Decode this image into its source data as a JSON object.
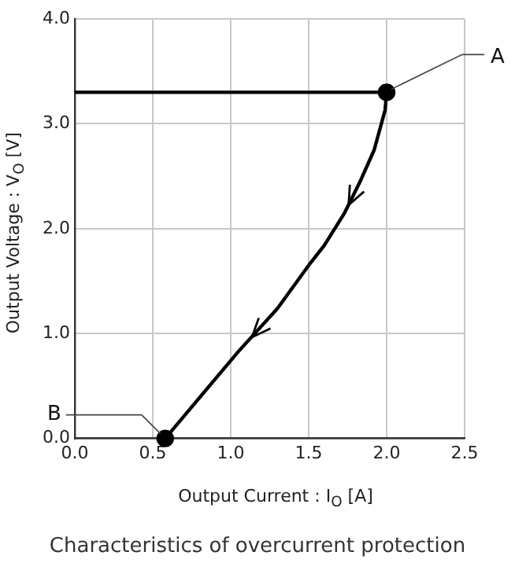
{
  "chart_data": {
    "type": "line",
    "xlabel": "Output Current : I$_{O}$ [A]",
    "ylabel": "Output Voltage : V$_{O}$ [V]",
    "xlim": [
      0,
      2.5
    ],
    "xticks": [
      {
        "value": 0,
        "label": "0.0"
      },
      {
        "value": 0.5,
        "label": "0.5"
      },
      {
        "value": 1,
        "label": "1.0"
      },
      {
        "value": 1.5,
        "label": "1.5"
      },
      {
        "value": 2,
        "label": "2.0"
      },
      {
        "value": 2.5,
        "label": "2.5"
      }
    ],
    "ylim": [
      0,
      4
    ],
    "yticks": [
      {
        "value": 0,
        "label": "0.0"
      },
      {
        "value": 1,
        "label": "1.0"
      },
      {
        "value": 2,
        "label": "2.0"
      },
      {
        "value": 3,
        "label": "3.0"
      },
      {
        "value": 4,
        "label": "4.0"
      }
    ],
    "grid": true,
    "legend": false,
    "line_style": "solid",
    "series": [
      {
        "type": "line",
        "color": "#000000",
        "marker": "none",
        "x": [
          0,
          2.0,
          1.99,
          1.92,
          1.83,
          1.73,
          1.6,
          1.51,
          1.3,
          1.05,
          0.88,
          0.58
        ],
        "values": [
          3.3,
          3.3,
          3.13,
          2.75,
          2.45,
          2.15,
          1.84,
          1.67,
          1.24,
          0.83,
          0.53,
          0
        ]
      },
      {
        "type": "scatter",
        "color": "#000000",
        "marker": "circle",
        "x": [
          2.0,
          0.58
        ],
        "values": [
          3.3,
          0
        ]
      }
    ],
    "annotations": [
      {
        "text": "A",
        "x": 2.0,
        "y": 3.3
      },
      {
        "text": "B",
        "x": 0.58,
        "y": 0
      },
      "Characteristics of overcurrent protection"
    ]
  }
}
